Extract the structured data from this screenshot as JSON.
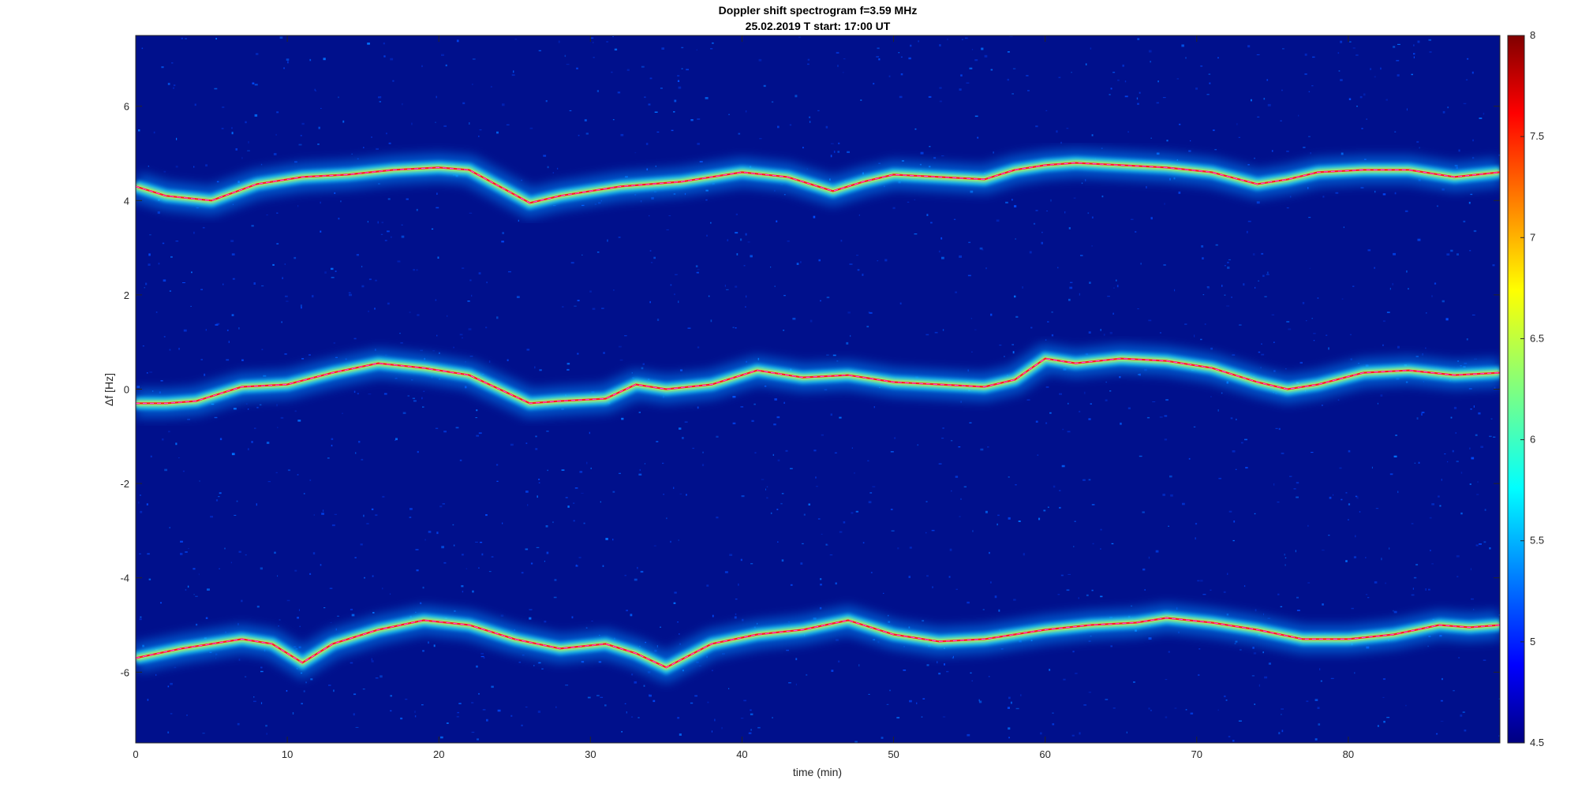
{
  "chart_data": {
    "type": "heatmap",
    "title": "Doppler shift spectrogram f=3.59 MHz",
    "subtitle": "25.02.2019   T start: 17:00 UT",
    "xlabel": "time (min)",
    "ylabel": "Δf [Hz]",
    "xlim": [
      0,
      90
    ],
    "ylim": [
      -7.5,
      7.5
    ],
    "x_ticks": [
      "0",
      "10",
      "20",
      "30",
      "40",
      "50",
      "60",
      "70",
      "80"
    ],
    "x_tick_values": [
      0,
      10,
      20,
      30,
      40,
      50,
      60,
      70,
      80
    ],
    "y_ticks": [
      "-6",
      "-4",
      "-2",
      "0",
      "2",
      "4",
      "6"
    ],
    "y_tick_values": [
      -6,
      -4,
      -2,
      0,
      2,
      4,
      6
    ],
    "colorbar": {
      "range": [
        4.5,
        8
      ],
      "ticks": [
        "4.5",
        "5",
        "5.5",
        "6",
        "6.5",
        "7",
        "7.5",
        "8"
      ],
      "tick_values": [
        4.5,
        5,
        5.5,
        6,
        6.5,
        7,
        7.5,
        8
      ],
      "colormap": "jet"
    },
    "grid": false,
    "series": [
      {
        "values_x": [
          0,
          2,
          5,
          8,
          11,
          14,
          17,
          20,
          22,
          24,
          26,
          28,
          30,
          32,
          34,
          36,
          40,
          43,
          46,
          48,
          50,
          53,
          56,
          58,
          60,
          62,
          65,
          68,
          71,
          74,
          76,
          78,
          81,
          84,
          87,
          90
        ],
        "values": [
          4.3,
          4.1,
          4.0,
          4.35,
          4.5,
          4.55,
          4.65,
          4.7,
          4.65,
          4.3,
          3.95,
          4.1,
          4.2,
          4.3,
          4.35,
          4.4,
          4.6,
          4.5,
          4.2,
          4.4,
          4.55,
          4.5,
          4.45,
          4.65,
          4.75,
          4.8,
          4.75,
          4.7,
          4.6,
          4.35,
          4.45,
          4.6,
          4.65,
          4.65,
          4.5,
          4.6
        ]
      },
      {
        "values_x": [
          0,
          2,
          4,
          7,
          10,
          13,
          16,
          19,
          22,
          24,
          26,
          28,
          31,
          33,
          35,
          38,
          41,
          44,
          47,
          50,
          53,
          56,
          58,
          60,
          62,
          65,
          68,
          71,
          74,
          76,
          78,
          81,
          84,
          87,
          90
        ],
        "values": [
          -0.3,
          -0.3,
          -0.25,
          0.05,
          0.1,
          0.35,
          0.55,
          0.45,
          0.3,
          0.0,
          -0.3,
          -0.25,
          -0.2,
          0.1,
          0.0,
          0.1,
          0.4,
          0.25,
          0.3,
          0.15,
          0.1,
          0.05,
          0.2,
          0.65,
          0.55,
          0.65,
          0.6,
          0.45,
          0.15,
          0.0,
          0.1,
          0.35,
          0.4,
          0.3,
          0.35
        ]
      },
      {
        "values_x": [
          0,
          3,
          7,
          9,
          11,
          13,
          16,
          19,
          22,
          25,
          28,
          31,
          33,
          35,
          38,
          41,
          44,
          47,
          50,
          53,
          56,
          58,
          60,
          63,
          66,
          68,
          71,
          74,
          77,
          80,
          83,
          86,
          88,
          90
        ],
        "values": [
          -5.7,
          -5.5,
          -5.3,
          -5.4,
          -5.8,
          -5.4,
          -5.1,
          -4.9,
          -5.0,
          -5.3,
          -5.5,
          -5.4,
          -5.6,
          -5.9,
          -5.4,
          -5.2,
          -5.1,
          -4.9,
          -5.2,
          -5.35,
          -5.3,
          -5.2,
          -5.1,
          -5.0,
          -4.95,
          -4.85,
          -4.95,
          -5.1,
          -5.3,
          -5.3,
          -5.2,
          -5.0,
          -5.05,
          -5.0
        ]
      }
    ]
  }
}
